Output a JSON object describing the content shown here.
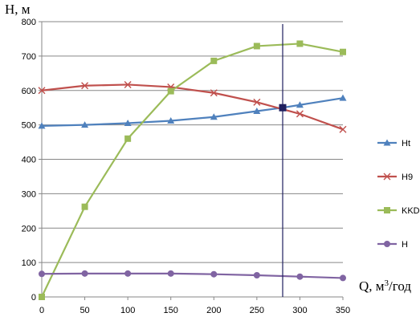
{
  "chart_data": {
    "type": "line",
    "title": "",
    "ylabel": "H, м",
    "xlabel_main": "Q",
    "xlabel_units": ", м",
    "xlabel_sup": "3",
    "xlabel_tail": "/год",
    "x": [
      0,
      50,
      100,
      150,
      200,
      250,
      300,
      350
    ],
    "xticks": [
      "0",
      "50",
      "100",
      "150",
      "200",
      "250",
      "300",
      "350"
    ],
    "yticks": [
      "0",
      "100",
      "200",
      "300",
      "400",
      "500",
      "600",
      "700",
      "800"
    ],
    "xlim": [
      0,
      350
    ],
    "ylim": [
      0,
      800
    ],
    "grid": "horizontal",
    "legend_position": "right",
    "series": [
      {
        "name": "Ht",
        "color": "#4F81BD",
        "marker": "triangle",
        "x": [
          0,
          50,
          100,
          150,
          200,
          250,
          280,
          300,
          350
        ],
        "values": [
          497,
          500,
          505,
          512,
          523,
          540,
          550,
          558,
          578
        ]
      },
      {
        "name": "H9",
        "color": "#C0504D",
        "marker": "cross",
        "x": [
          0,
          50,
          100,
          150,
          200,
          250,
          300,
          350
        ],
        "values": [
          600,
          614,
          617,
          610,
          593,
          566,
          532,
          487
        ]
      },
      {
        "name": "KKD",
        "color": "#9BBB59",
        "marker": "square",
        "x": [
          0,
          50,
          100,
          150,
          200,
          250,
          300,
          350
        ],
        "values": [
          0,
          262,
          460,
          598,
          686,
          729,
          736,
          712
        ]
      },
      {
        "name": "H",
        "color": "#8064A2",
        "marker": "circle",
        "x": [
          0,
          50,
          100,
          150,
          200,
          250,
          300,
          350
        ],
        "values": [
          67,
          68,
          68,
          68,
          66,
          63,
          59,
          55
        ]
      }
    ],
    "operating_point": {
      "x": 280,
      "y": 550,
      "color": "#1F1F5F"
    }
  }
}
